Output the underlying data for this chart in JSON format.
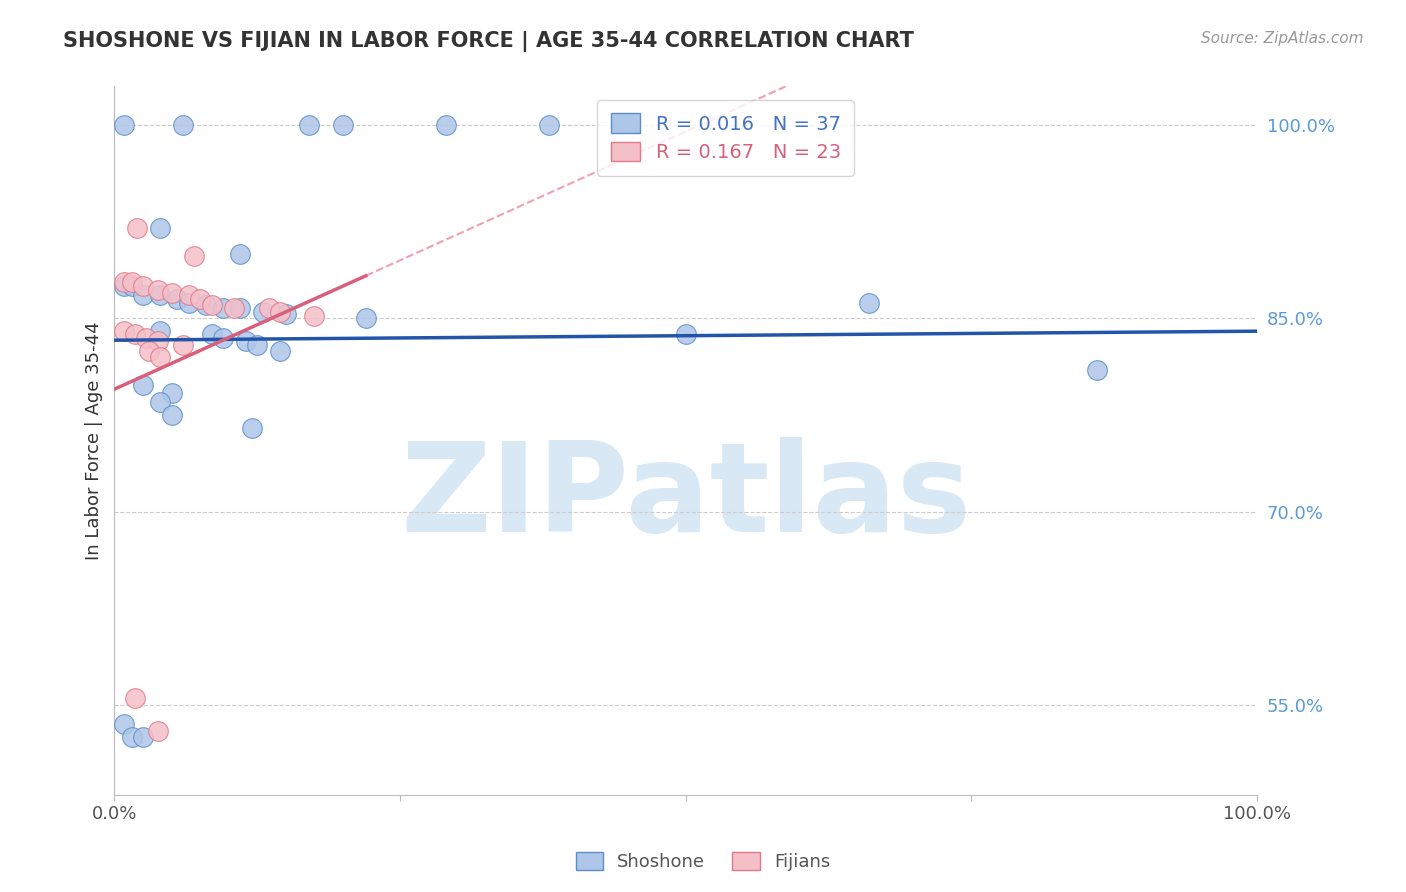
{
  "title": "SHOSHONE VS FIJIAN IN LABOR FORCE | AGE 35-44 CORRELATION CHART",
  "source_text": "Source: ZipAtlas.com",
  "ylabel": "In Labor Force | Age 35-44",
  "xlim": [
    0.0,
    1.0
  ],
  "ylim": [
    0.48,
    1.03
  ],
  "ytick_positions": [
    0.55,
    0.7,
    0.85,
    1.0
  ],
  "ytick_labels": [
    "55.0%",
    "70.0%",
    "85.0%",
    "100.0%"
  ],
  "shoshone_color": "#aec6e8",
  "shoshone_edge": "#5b8fc9",
  "fijian_color": "#f5bfc8",
  "fijian_edge": "#e07a8a",
  "trendline_blue": "#2255aa",
  "trendline_pink_solid": "#d9607a",
  "trendline_pink_dashed": "#f0a0b0",
  "legend_label_blue": "Shoshone",
  "legend_label_pink": "Fijians",
  "R_blue": 0.016,
  "N_blue": 37,
  "R_pink": 0.167,
  "N_pink": 23,
  "shoshone_x": [
    0.008,
    0.06,
    0.17,
    0.2,
    0.29,
    0.38,
    0.04,
    0.11,
    0.008,
    0.015,
    0.025,
    0.04,
    0.055,
    0.065,
    0.08,
    0.095,
    0.11,
    0.13,
    0.15,
    0.22,
    0.04,
    0.085,
    0.095,
    0.115,
    0.125,
    0.145,
    0.025,
    0.05,
    0.04,
    0.05,
    0.12,
    0.5,
    0.66,
    0.86,
    0.008,
    0.015,
    0.025
  ],
  "shoshone_y": [
    1.0,
    1.0,
    1.0,
    1.0,
    1.0,
    1.0,
    0.92,
    0.9,
    0.875,
    0.875,
    0.868,
    0.868,
    0.865,
    0.862,
    0.86,
    0.858,
    0.858,
    0.855,
    0.853,
    0.85,
    0.84,
    0.838,
    0.835,
    0.832,
    0.829,
    0.825,
    0.798,
    0.792,
    0.785,
    0.775,
    0.765,
    0.838,
    0.862,
    0.81,
    0.535,
    0.525,
    0.525
  ],
  "fijian_x": [
    0.02,
    0.07,
    0.008,
    0.015,
    0.025,
    0.038,
    0.05,
    0.065,
    0.075,
    0.085,
    0.105,
    0.135,
    0.145,
    0.175,
    0.008,
    0.018,
    0.028,
    0.038,
    0.06,
    0.03,
    0.04,
    0.018,
    0.038
  ],
  "fijian_y": [
    0.92,
    0.898,
    0.878,
    0.878,
    0.875,
    0.872,
    0.87,
    0.868,
    0.865,
    0.86,
    0.858,
    0.858,
    0.855,
    0.852,
    0.84,
    0.838,
    0.835,
    0.832,
    0.829,
    0.825,
    0.82,
    0.555,
    0.53
  ]
}
